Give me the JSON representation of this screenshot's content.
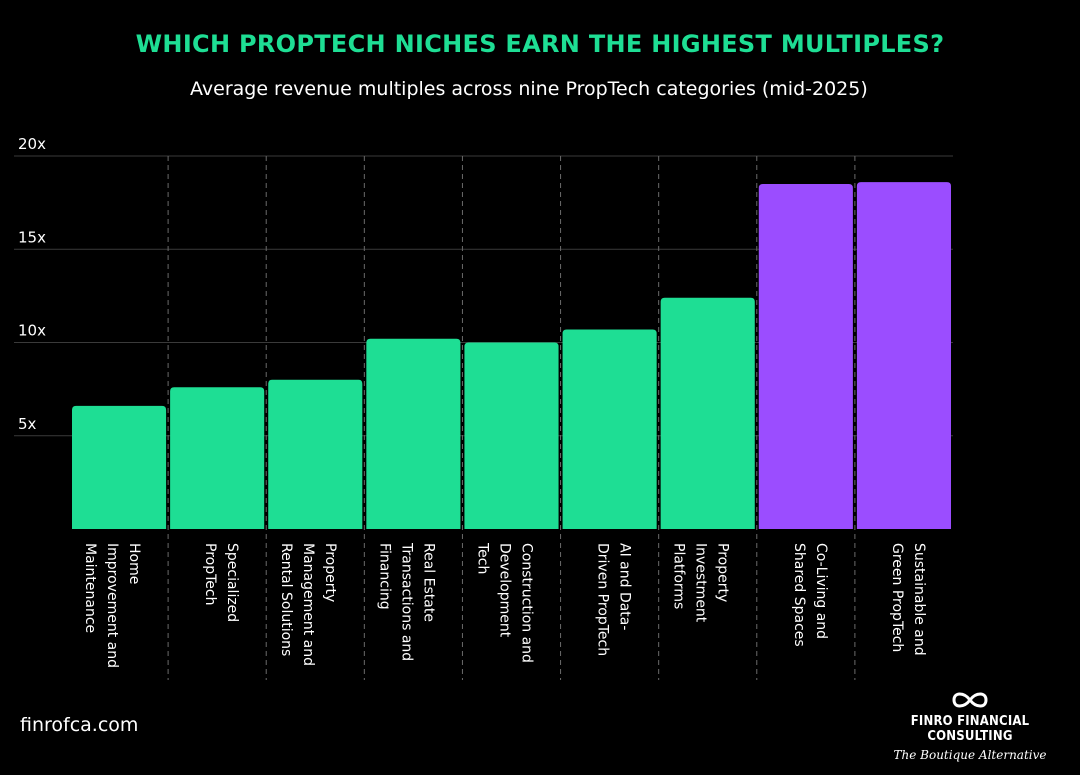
{
  "title": "WHICH PROPTECH NICHES EARN THE HIGHEST MULTIPLES?",
  "subtitle": "Average revenue multiples across nine PropTech categories (mid-2025)",
  "footer": {
    "website": "finrofca.com",
    "brand_name": "FINRO FINANCIAL CONSULTING",
    "brand_tagline": "The Boutique Alternative",
    "logo_icon": "infinity-icon"
  },
  "colors": {
    "title": "#1ede94",
    "bar_green": "#1ede94",
    "bar_purple": "#9b4dff",
    "background": "#000000",
    "grid": "#3a3a3a"
  },
  "chart_data": {
    "type": "bar",
    "title": "WHICH PROPTECH NICHES EARN THE HIGHEST MULTIPLES?",
    "subtitle": "Average revenue multiples across nine PropTech categories (mid-2025)",
    "categories": [
      "Home Improvement and Maintenance",
      "Specialized PropTech",
      "Property Management and Rental Solutions",
      "Real Estate Transactions and Financing",
      "Construction and Development Tech",
      "AI and Data-Driven PropTech",
      "Property Investment Platforms",
      "Co-Living and Shared Spaces",
      "Sustainable and Green PropTech"
    ],
    "category_label_lines": [
      [
        "Home",
        "Improvement and",
        "Maintenance"
      ],
      [
        "Specialized",
        "PropTech"
      ],
      [
        "Property",
        "Management and",
        "Rental Solutions"
      ],
      [
        "Real Estate",
        "Transactions and",
        "Financing"
      ],
      [
        "Construction and",
        "Development",
        "Tech"
      ],
      [
        "AI and Data-",
        "Driven PropTech"
      ],
      [
        "Property",
        "Investment",
        "Platforms"
      ],
      [
        "Co-Living and",
        "Shared Spaces"
      ],
      [
        "Sustainable and",
        "Green PropTech"
      ]
    ],
    "values": [
      6.6,
      7.6,
      8.0,
      10.2,
      10.0,
      10.7,
      12.4,
      18.5,
      18.6
    ],
    "highlight": [
      false,
      false,
      false,
      false,
      false,
      false,
      false,
      true,
      true
    ],
    "ylim": [
      0,
      20
    ],
    "yticks": [
      5,
      10,
      15,
      20
    ],
    "ytick_labels": [
      "5x",
      "10x",
      "15x",
      "20x"
    ],
    "xlabel": "",
    "ylabel": "",
    "grid": true
  }
}
